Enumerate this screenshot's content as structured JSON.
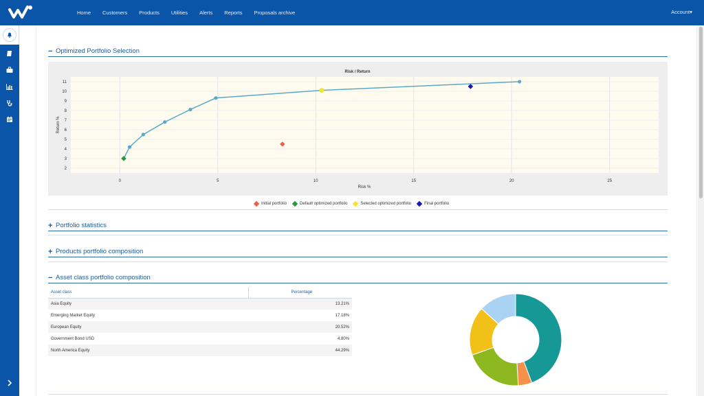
{
  "nav": {
    "items": [
      "Home",
      "Customers",
      "Products",
      "Utilities",
      "Alerts",
      "Reports",
      "Proposals archive"
    ],
    "account": "Account▾"
  },
  "sidebar": {
    "icons": [
      "bell-icon",
      "book-icon",
      "briefcase-icon",
      "bar-chart-icon",
      "stethoscope-icon",
      "calendar-icon"
    ],
    "expand_icon": "chevron-right-icon"
  },
  "sections": {
    "optimized": {
      "symbol": "−",
      "title": "Optimized Portfolio Selection"
    },
    "statistics": {
      "symbol": "+",
      "title": "Portfolio statistics"
    },
    "products": {
      "symbol": "+",
      "title": "Products portfolio composition"
    },
    "asset": {
      "symbol": "−",
      "title": "Asset class portfolio composition"
    }
  },
  "chart_data": {
    "type": "scatter",
    "title": "Risk / Return",
    "xlabel": "Risk %",
    "ylabel": "Return %",
    "xlim": [
      -2.5,
      27.5
    ],
    "ylim": [
      1.5,
      11.5
    ],
    "xticks": [
      0,
      5,
      10,
      15,
      20,
      25
    ],
    "yticks": [
      2,
      3,
      4,
      5,
      6,
      7,
      8,
      9,
      10,
      11
    ],
    "frontier": {
      "x": [
        0.2,
        0.5,
        1.2,
        2.3,
        3.6,
        4.9,
        10.3,
        20.4
      ],
      "y": [
        3.0,
        4.2,
        5.5,
        6.8,
        8.1,
        9.3,
        10.1,
        11.0
      ],
      "color": "#5aa9c9"
    },
    "points": [
      {
        "name": "Initial portfolio",
        "x": 8.3,
        "y": 4.5,
        "color": "#e8614a"
      },
      {
        "name": "Default optimized portfolio",
        "x": 0.2,
        "y": 3.0,
        "color": "#2a9a3a"
      },
      {
        "name": "Selected optimized portfolio",
        "x": 10.3,
        "y": 10.1,
        "color": "#f2e62a"
      },
      {
        "name": "Final portfolio",
        "x": 17.9,
        "y": 10.5,
        "color": "#1616b8"
      }
    ],
    "grid": true,
    "legend": "bottom"
  },
  "asset_table": {
    "headers": [
      "Asset class",
      "Percentage"
    ],
    "rows": [
      {
        "name": "Asia Equity",
        "value": "13.21%"
      },
      {
        "name": "Emerging Market Equity",
        "value": "17.18%"
      },
      {
        "name": "European Equity",
        "value": "20.52%"
      },
      {
        "name": "Government Bond USD",
        "value": "4.80%"
      },
      {
        "name": "North America Equity",
        "value": "44.29%"
      }
    ]
  },
  "donut": {
    "slices": [
      {
        "value": 44.29,
        "color": "#169896"
      },
      {
        "value": 4.8,
        "color": "#f5914a"
      },
      {
        "value": 20.52,
        "color": "#8db81f"
      },
      {
        "value": 17.18,
        "color": "#f2c119"
      },
      {
        "value": 13.21,
        "color": "#a9d2f3"
      }
    ]
  }
}
